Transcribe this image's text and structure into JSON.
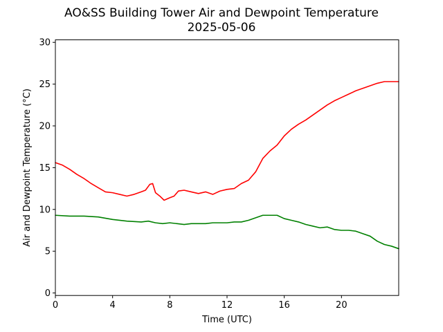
{
  "chart_data": {
    "type": "line",
    "title": "AO&SS Building Tower Air and Dewpoint Temperature",
    "subtitle": "2025-05-06",
    "xlabel": "Time (UTC)",
    "ylabel": "Air and Dewpoint Temperature (°C)",
    "xlim": [
      0,
      24
    ],
    "ylim": [
      -0.3,
      30.3
    ],
    "xticks": [
      0,
      4,
      8,
      12,
      16,
      20
    ],
    "yticks": [
      0,
      5,
      10,
      15,
      20,
      25,
      30
    ],
    "grid": false,
    "series": [
      {
        "color": "#ff0000",
        "x": [
          0,
          0.5,
          1,
          1.5,
          2,
          2.5,
          3,
          3.5,
          4,
          4.5,
          5,
          5.5,
          6,
          6.3,
          6.6,
          6.8,
          7,
          7.3,
          7.6,
          8,
          8.3,
          8.6,
          9,
          9.5,
          10,
          10.5,
          11,
          11.5,
          12,
          12.5,
          13,
          13.5,
          14,
          14.5,
          15,
          15.5,
          16,
          16.5,
          17,
          17.5,
          18,
          18.5,
          19,
          19.5,
          20,
          20.5,
          21,
          21.5,
          22,
          22.5,
          23,
          23.5,
          24
        ],
        "y": [
          15.6,
          15.3,
          14.8,
          14.2,
          13.7,
          13.1,
          12.6,
          12.1,
          12.0,
          11.8,
          11.6,
          11.8,
          12.1,
          12.3,
          13.0,
          13.1,
          12.0,
          11.6,
          11.1,
          11.4,
          11.6,
          12.2,
          12.3,
          12.1,
          11.9,
          12.1,
          11.8,
          12.2,
          12.4,
          12.5,
          13.1,
          13.5,
          14.5,
          16.1,
          17.0,
          17.7,
          18.8,
          19.6,
          20.2,
          20.7,
          21.3,
          21.9,
          22.5,
          23.0,
          23.4,
          23.8,
          24.2,
          24.5,
          24.8,
          25.1,
          25.3,
          25.3,
          25.3
        ]
      },
      {
        "color": "#008000",
        "x": [
          0,
          1,
          2,
          3,
          4,
          5,
          6,
          6.5,
          7,
          7.5,
          8,
          8.5,
          9,
          9.5,
          10,
          10.5,
          11,
          11.5,
          12,
          12.5,
          13,
          13.5,
          14,
          14.5,
          15,
          15.5,
          16,
          16.5,
          17,
          17.5,
          18,
          18.5,
          19,
          19.5,
          20,
          20.5,
          21,
          21.5,
          22,
          22.5,
          23,
          23.5,
          24
        ],
        "y": [
          9.3,
          9.2,
          9.2,
          9.1,
          8.8,
          8.6,
          8.5,
          8.6,
          8.4,
          8.3,
          8.4,
          8.3,
          8.2,
          8.3,
          8.3,
          8.3,
          8.4,
          8.4,
          8.4,
          8.5,
          8.5,
          8.7,
          9.0,
          9.3,
          9.3,
          9.3,
          8.9,
          8.7,
          8.5,
          8.2,
          8.0,
          7.8,
          7.9,
          7.6,
          7.5,
          7.5,
          7.4,
          7.1,
          6.8,
          6.2,
          5.8,
          5.6,
          5.3
        ]
      }
    ]
  }
}
